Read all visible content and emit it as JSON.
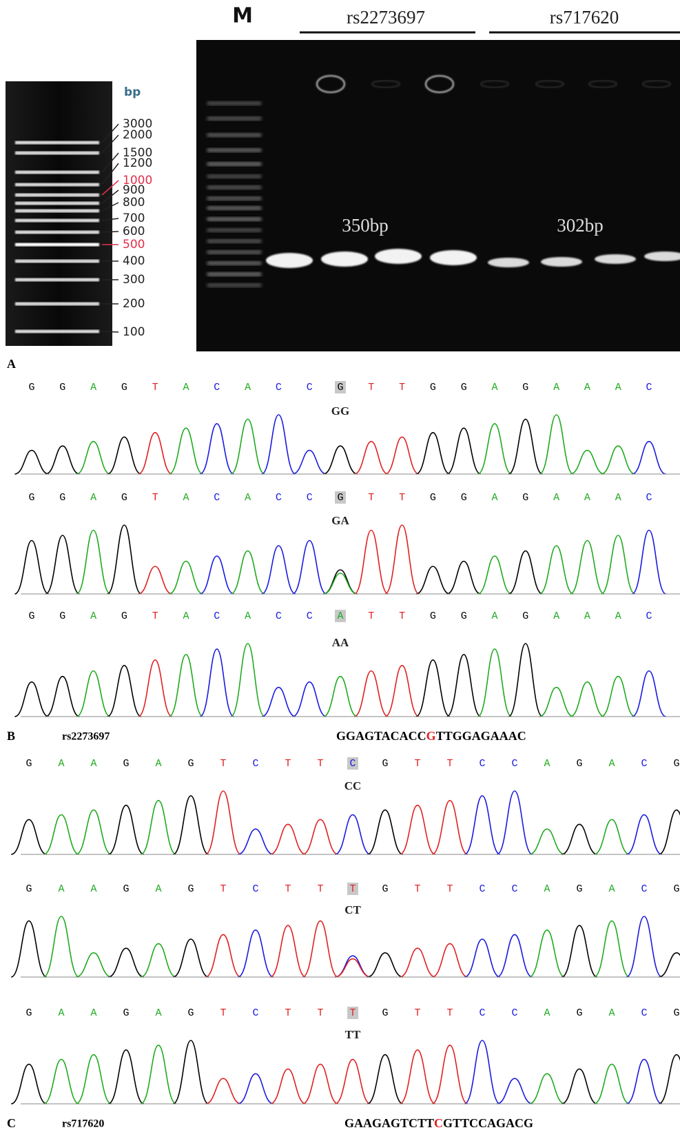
{
  "gel": {
    "marker_label": "M",
    "group_labels": [
      "rs2273697",
      "rs717620"
    ],
    "ladder_unit": "bp",
    "ladder": [
      {
        "text": "3000",
        "color": "#222222"
      },
      {
        "text": "2000",
        "color": "#222222"
      },
      {
        "text": "1500",
        "color": "#222222"
      },
      {
        "text": "1200",
        "color": "#222222"
      },
      {
        "text": "1000",
        "color": "#e0304a"
      },
      {
        "text": "900",
        "color": "#222222"
      },
      {
        "text": "800",
        "color": "#222222"
      },
      {
        "text": "700",
        "color": "#222222"
      },
      {
        "text": "600",
        "color": "#222222"
      },
      {
        "text": "500",
        "color": "#e0304a"
      },
      {
        "text": "400",
        "color": "#222222"
      },
      {
        "text": "300",
        "color": "#222222"
      },
      {
        "text": "200",
        "color": "#222222"
      },
      {
        "text": "100",
        "color": "#222222"
      }
    ],
    "band_labels": [
      "350bp",
      "302bp"
    ]
  },
  "panel_labels": [
    "A",
    "B",
    "C"
  ],
  "chromatograms": [
    {
      "snp": "rs2273697",
      "sequence": [
        "GGAGTACACC",
        "G",
        "TTGGAGAAAC"
      ],
      "highlight": 10,
      "rows": [
        {
          "genotype": "GG",
          "bases": [
            "G",
            "G",
            "A",
            "G",
            "T",
            "A",
            "C",
            "A",
            "C",
            "C",
            "G",
            "T",
            "T",
            "G",
            "G",
            "A",
            "G",
            "A",
            "A",
            "A",
            "C"
          ]
        },
        {
          "genotype": "GA",
          "bases": [
            "G",
            "G",
            "A",
            "G",
            "T",
            "A",
            "C",
            "A",
            "C",
            "C",
            "G",
            "T",
            "T",
            "G",
            "G",
            "A",
            "G",
            "A",
            "A",
            "A",
            "C"
          ]
        },
        {
          "genotype": "AA",
          "bases": [
            "G",
            "G",
            "A",
            "G",
            "T",
            "A",
            "C",
            "A",
            "C",
            "C",
            "A",
            "T",
            "T",
            "G",
            "G",
            "A",
            "G",
            "A",
            "A",
            "A",
            "C"
          ]
        }
      ]
    },
    {
      "snp": "rs717620",
      "sequence": [
        "GAAGAGTCTT",
        "C",
        "GTTCCAGACG"
      ],
      "highlight": 10,
      "rows": [
        {
          "genotype": "CC",
          "bases": [
            "G",
            "A",
            "A",
            "G",
            "A",
            "G",
            "T",
            "C",
            "T",
            "T",
            "C",
            "G",
            "T",
            "T",
            "C",
            "C",
            "A",
            "G",
            "A",
            "C",
            "G"
          ]
        },
        {
          "genotype": "CT",
          "bases": [
            "G",
            "A",
            "A",
            "G",
            "A",
            "G",
            "T",
            "C",
            "T",
            "T",
            "T",
            "G",
            "T",
            "T",
            "C",
            "C",
            "A",
            "G",
            "A",
            "C",
            "G"
          ]
        },
        {
          "genotype": "TT",
          "bases": [
            "G",
            "A",
            "A",
            "G",
            "A",
            "G",
            "T",
            "C",
            "T",
            "T",
            "T",
            "G",
            "T",
            "T",
            "C",
            "C",
            "A",
            "G",
            "A",
            "C",
            "G"
          ]
        }
      ]
    }
  ]
}
